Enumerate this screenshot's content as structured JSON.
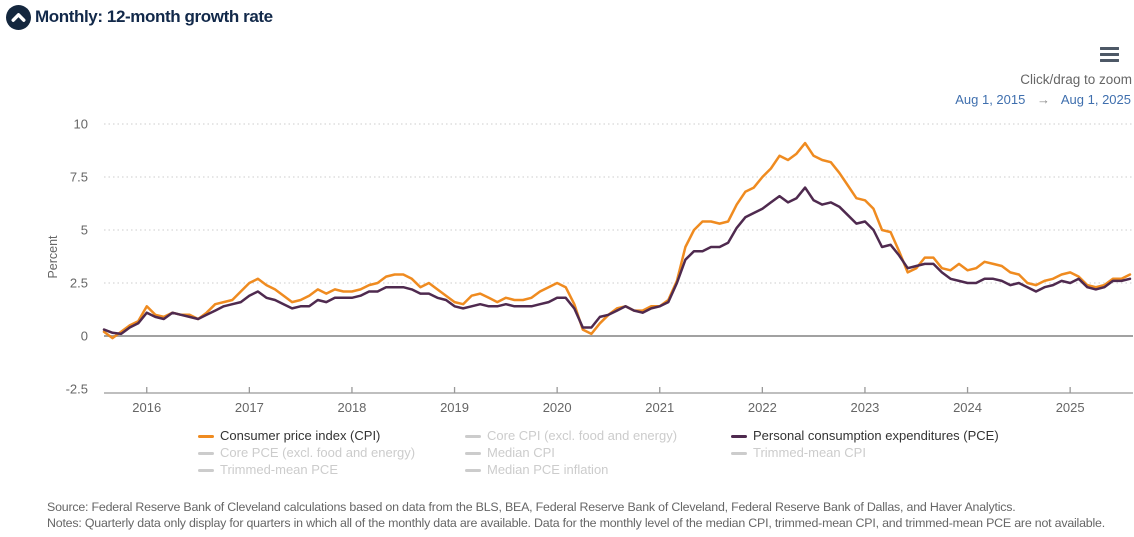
{
  "header": {
    "title": "Monthly: 12-month growth rate",
    "icon": "chevron-up-circle-icon"
  },
  "controls": {
    "menu_icon": "hamburger-menu-icon",
    "zoom_hint": "Click/drag to zoom",
    "date_start": "Aug 1, 2015",
    "arrow": "→",
    "date_end": "Aug 1, 2025"
  },
  "chart_data": {
    "type": "line",
    "title": "Monthly: 12-month growth rate",
    "xlabel": "",
    "ylabel": "Percent",
    "ylim": [
      -2.5,
      10
    ],
    "yticks": [
      "10",
      "7.5",
      "5",
      "2.5",
      "0",
      "-2.5"
    ],
    "grid_yticks": [
      10,
      7.5,
      5,
      2.5
    ],
    "grid": "dotted horizontal",
    "zero_line": 0,
    "x_start": "Aug 1, 2015",
    "x_end": "Aug 1, 2025",
    "x_unit": "month",
    "xticks": [
      "2016",
      "2017",
      "2018",
      "2019",
      "2020",
      "2021",
      "2022",
      "2023",
      "2024",
      "2025"
    ],
    "legend_position": "bottom",
    "series": [
      {
        "name": "Consumer price index (CPI)",
        "color": "#ef8b20",
        "visible": true,
        "values": [
          0.2,
          -0.1,
          0.2,
          0.5,
          0.7,
          1.4,
          1.0,
          0.9,
          1.1,
          1.0,
          1.0,
          0.8,
          1.1,
          1.5,
          1.6,
          1.7,
          2.1,
          2.5,
          2.7,
          2.4,
          2.2,
          1.9,
          1.6,
          1.7,
          1.9,
          2.2,
          2.0,
          2.2,
          2.1,
          2.1,
          2.2,
          2.4,
          2.5,
          2.8,
          2.9,
          2.9,
          2.7,
          2.3,
          2.5,
          2.2,
          1.9,
          1.6,
          1.5,
          1.9,
          2.0,
          1.8,
          1.6,
          1.8,
          1.7,
          1.7,
          1.8,
          2.1,
          2.3,
          2.5,
          2.3,
          1.5,
          0.3,
          0.1,
          0.6,
          1.0,
          1.3,
          1.4,
          1.2,
          1.2,
          1.4,
          1.4,
          1.7,
          2.6,
          4.2,
          5.0,
          5.4,
          5.4,
          5.3,
          5.4,
          6.2,
          6.8,
          7.0,
          7.5,
          7.9,
          8.5,
          8.3,
          8.6,
          9.1,
          8.5,
          8.3,
          8.2,
          7.7,
          7.1,
          6.5,
          6.4,
          6.0,
          5.0,
          4.9,
          4.0,
          3.0,
          3.2,
          3.7,
          3.7,
          3.2,
          3.1,
          3.4,
          3.1,
          3.2,
          3.5,
          3.4,
          3.3,
          3.0,
          2.9,
          2.5,
          2.4,
          2.6,
          2.7,
          2.9,
          3.0,
          2.8,
          2.4,
          2.3,
          2.4,
          2.7,
          2.7,
          2.9
        ]
      },
      {
        "name": "Personal consumption expenditures (PCE)",
        "color": "#4f2a4f",
        "visible": true,
        "values": [
          0.3,
          0.15,
          0.1,
          0.4,
          0.6,
          1.1,
          0.9,
          0.8,
          1.1,
          1.0,
          0.9,
          0.8,
          1.0,
          1.2,
          1.4,
          1.5,
          1.6,
          1.9,
          2.1,
          1.8,
          1.7,
          1.5,
          1.3,
          1.4,
          1.4,
          1.7,
          1.6,
          1.8,
          1.8,
          1.8,
          1.9,
          2.1,
          2.1,
          2.3,
          2.3,
          2.3,
          2.2,
          2.0,
          2.0,
          1.8,
          1.7,
          1.4,
          1.3,
          1.4,
          1.5,
          1.4,
          1.4,
          1.5,
          1.4,
          1.4,
          1.4,
          1.5,
          1.6,
          1.8,
          1.8,
          1.3,
          0.4,
          0.4,
          0.9,
          1.0,
          1.2,
          1.4,
          1.2,
          1.1,
          1.3,
          1.4,
          1.6,
          2.5,
          3.6,
          4.0,
          4.0,
          4.2,
          4.2,
          4.4,
          5.1,
          5.6,
          5.8,
          6.0,
          6.3,
          6.6,
          6.3,
          6.5,
          7.0,
          6.4,
          6.2,
          6.3,
          6.1,
          5.7,
          5.3,
          5.4,
          5.0,
          4.2,
          4.3,
          3.8,
          3.2,
          3.3,
          3.4,
          3.4,
          3.0,
          2.7,
          2.6,
          2.5,
          2.5,
          2.7,
          2.7,
          2.6,
          2.4,
          2.5,
          2.3,
          2.1,
          2.3,
          2.4,
          2.6,
          2.5,
          2.7,
          2.3,
          2.2,
          2.3,
          2.6,
          2.6,
          2.7
        ]
      }
    ],
    "legend": {
      "items": [
        {
          "label": "Consumer price index (CPI)",
          "color": "#ef8b20",
          "active": true
        },
        {
          "label": "Core CPI (excl. food and energy)",
          "color": "#cccccc",
          "active": false
        },
        {
          "label": "Personal consumption expenditures (PCE)",
          "color": "#4f2a4f",
          "active": true
        },
        {
          "label": "Core PCE (excl. food and energy)",
          "color": "#cccccc",
          "active": false
        },
        {
          "label": "Median CPI",
          "color": "#cccccc",
          "active": false
        },
        {
          "label": "Trimmed-mean CPI",
          "color": "#cccccc",
          "active": false
        },
        {
          "label": "Trimmed-mean PCE",
          "color": "#cccccc",
          "active": false
        },
        {
          "label": "Median PCE inflation",
          "color": "#cccccc",
          "active": false
        }
      ]
    }
  },
  "footer": {
    "source": "Source: Federal Reserve Bank of Cleveland calculations based on data from the BLS, BEA, Federal Reserve Bank of Cleveland, Federal Reserve Bank of Dallas, and Haver Analytics.",
    "notes": "Notes: Quarterly data only display for quarters in which all of the monthly data are available. Data for the monthly level of the median CPI, trimmed-mean CPI, and trimmed-mean PCE are not available."
  },
  "colors": {
    "brand_navy": "#14273e",
    "cpi_orange": "#ef8b20",
    "pce_purple": "#4f2a4f",
    "axis_text": "#666666",
    "grid": "#cccccc",
    "axis_line": "#999999",
    "link_blue": "#3f6fae",
    "disabled": "#cccccc"
  }
}
